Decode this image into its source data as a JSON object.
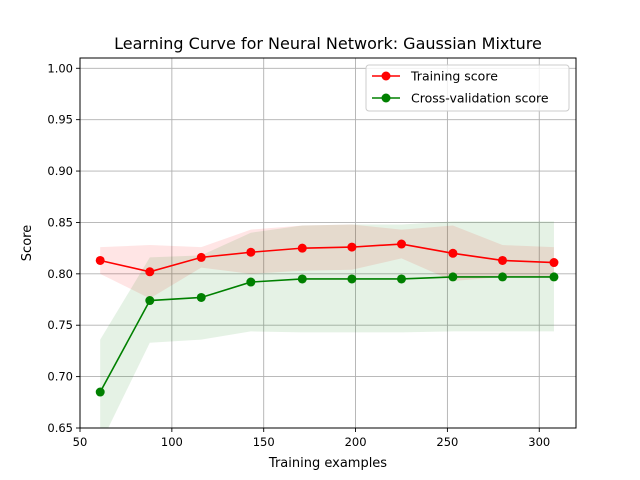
{
  "chart_data": {
    "type": "line",
    "title": "Learning Curve for Neural Network: Gaussian Mixture",
    "xlabel": "Training examples",
    "ylabel": "Score",
    "xlim": [
      50,
      320
    ],
    "ylim": [
      0.65,
      1.01
    ],
    "grid": true,
    "legend_position": "top-right",
    "x_ticks": [
      {
        "value": 50,
        "label": "50"
      },
      {
        "value": 100,
        "label": "100"
      },
      {
        "value": 150,
        "label": "150"
      },
      {
        "value": 200,
        "label": "200"
      },
      {
        "value": 250,
        "label": "250"
      },
      {
        "value": 300,
        "label": "300"
      }
    ],
    "y_ticks": [
      {
        "value": 0.65,
        "label": "0.65"
      },
      {
        "value": 0.7,
        "label": "0.70"
      },
      {
        "value": 0.75,
        "label": "0.75"
      },
      {
        "value": 0.8,
        "label": "0.80"
      },
      {
        "value": 0.85,
        "label": "0.85"
      },
      {
        "value": 0.9,
        "label": "0.90"
      },
      {
        "value": 0.95,
        "label": "0.95"
      },
      {
        "value": 1.0,
        "label": "1.00"
      }
    ],
    "x": [
      61,
      88,
      116,
      143,
      171,
      198,
      225,
      253,
      280,
      308
    ],
    "series": [
      {
        "name": "Training score",
        "color": "#ff0000",
        "band_color": "#ff0000",
        "values": [
          0.813,
          0.802,
          0.816,
          0.821,
          0.825,
          0.826,
          0.829,
          0.82,
          0.813,
          0.811
        ],
        "lower": [
          0.8,
          0.776,
          0.806,
          0.8,
          0.803,
          0.804,
          0.815,
          0.793,
          0.797,
          0.796
        ],
        "upper": [
          0.826,
          0.828,
          0.826,
          0.843,
          0.847,
          0.848,
          0.843,
          0.847,
          0.828,
          0.826
        ]
      },
      {
        "name": "Cross-validation score",
        "color": "#008000",
        "band_color": "#008000",
        "values": [
          0.685,
          0.774,
          0.777,
          0.792,
          0.795,
          0.795,
          0.795,
          0.797,
          0.797,
          0.797
        ],
        "lower": [
          0.634,
          0.733,
          0.736,
          0.744,
          0.743,
          0.743,
          0.743,
          0.744,
          0.744,
          0.744
        ],
        "upper": [
          0.736,
          0.816,
          0.818,
          0.84,
          0.847,
          0.848,
          0.848,
          0.851,
          0.851,
          0.851
        ]
      }
    ]
  }
}
